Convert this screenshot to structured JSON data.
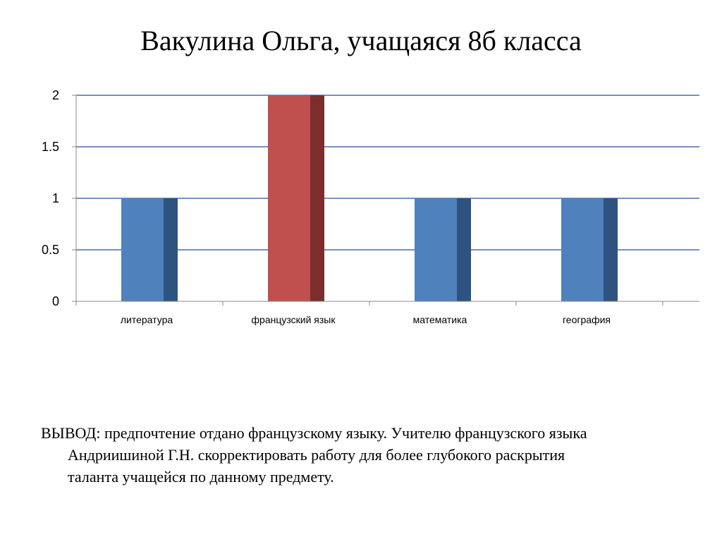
{
  "slide": {
    "title": "Вакулина Ольга, учащаяся 8б  класса"
  },
  "conclusion": {
    "lines": [
      "ВЫВОД: предпочтение отдано французскому языку. Учителю французского языка",
      "Андриишиной Г.Н. скорректировать работу для более глубокого раскрытия",
      "таланта учащейся по данному предмету."
    ]
  },
  "chart_data": {
    "type": "bar",
    "title": "",
    "xlabel": "",
    "ylabel": "",
    "categories": [
      "литература",
      "французский язык",
      "математика",
      "география"
    ],
    "values": [
      1,
      2,
      1,
      1
    ],
    "ylim": [
      0,
      2
    ],
    "yticks": [
      "0",
      "0.5",
      "1",
      "1.5",
      "2"
    ],
    "grid": true,
    "legend": "none",
    "style": "3d-column",
    "colors": {
      "default_bar": "#4F81BD",
      "default_bar_side": "#2F5380",
      "highlight_bar": "#C0504D",
      "highlight_bar_side": "#7A2F2D",
      "gridline": "#4A6FA5",
      "axis": "#888888"
    },
    "highlight_index": 1
  }
}
